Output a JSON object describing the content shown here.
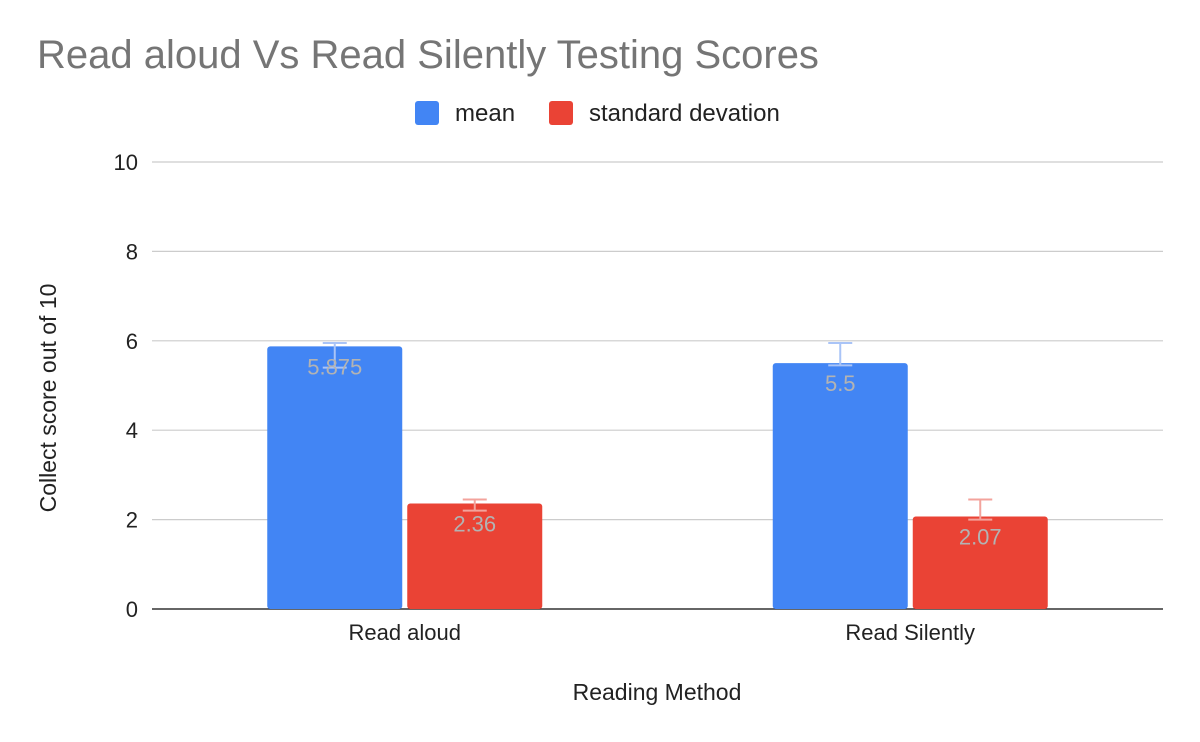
{
  "chart_data": {
    "type": "bar",
    "title": "Read aloud Vs Read Silently Testing Scores",
    "xlabel": "Reading Method",
    "ylabel": "Collect score out of 10",
    "categories": [
      "Read aloud",
      "Read Silently"
    ],
    "series": [
      {
        "name": "mean",
        "color": "#4285f4",
        "values": [
          5.875,
          5.5
        ],
        "labels": [
          "5.875",
          "5.5"
        ],
        "error_bars": [
          [
            5.4,
            5.95
          ],
          [
            5.45,
            5.95
          ]
        ]
      },
      {
        "name": "standard devation",
        "color": "#ea4335",
        "values": [
          2.36,
          2.07
        ],
        "labels": [
          "2.36",
          "2.07"
        ],
        "error_bars": [
          [
            2.2,
            2.45
          ],
          [
            2.0,
            2.45
          ]
        ]
      }
    ],
    "ylim": [
      0,
      10
    ],
    "yticks": [
      0,
      2,
      4,
      6,
      8,
      10
    ],
    "grid": true,
    "legend": "top"
  }
}
